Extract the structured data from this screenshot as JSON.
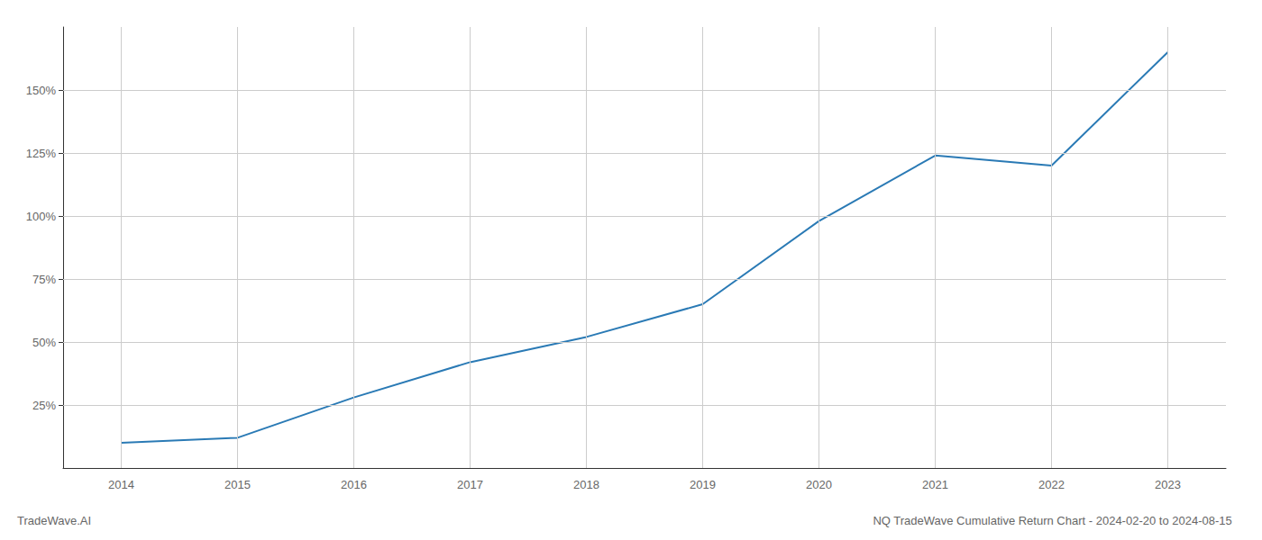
{
  "chart_data": {
    "type": "line",
    "title": "NQ TradeWave Cumulative Return Chart - 2024-02-20 to 2024-08-15",
    "annotations": [
      "TradeWave.AI"
    ],
    "x": [
      2014,
      2015,
      2016,
      2017,
      2018,
      2019,
      2020,
      2021,
      2022,
      2023
    ],
    "values": [
      10,
      12,
      28,
      42,
      52,
      65,
      98,
      124,
      120,
      165
    ],
    "color": "#2a7ab5",
    "xlim": [
      2013.5,
      2023.5
    ],
    "xticks": [
      2014,
      2015,
      2016,
      2017,
      2018,
      2019,
      2020,
      2021,
      2022,
      2023
    ],
    "ylim": [
      0,
      175
    ],
    "yticks": [
      {
        "value": 25,
        "label": "25%"
      },
      {
        "value": 50,
        "label": "50%"
      },
      {
        "value": 75,
        "label": "75%"
      },
      {
        "value": 100,
        "label": "100%"
      },
      {
        "value": 125,
        "label": "125%"
      },
      {
        "value": 150,
        "label": "150%"
      }
    ],
    "grid": true
  }
}
